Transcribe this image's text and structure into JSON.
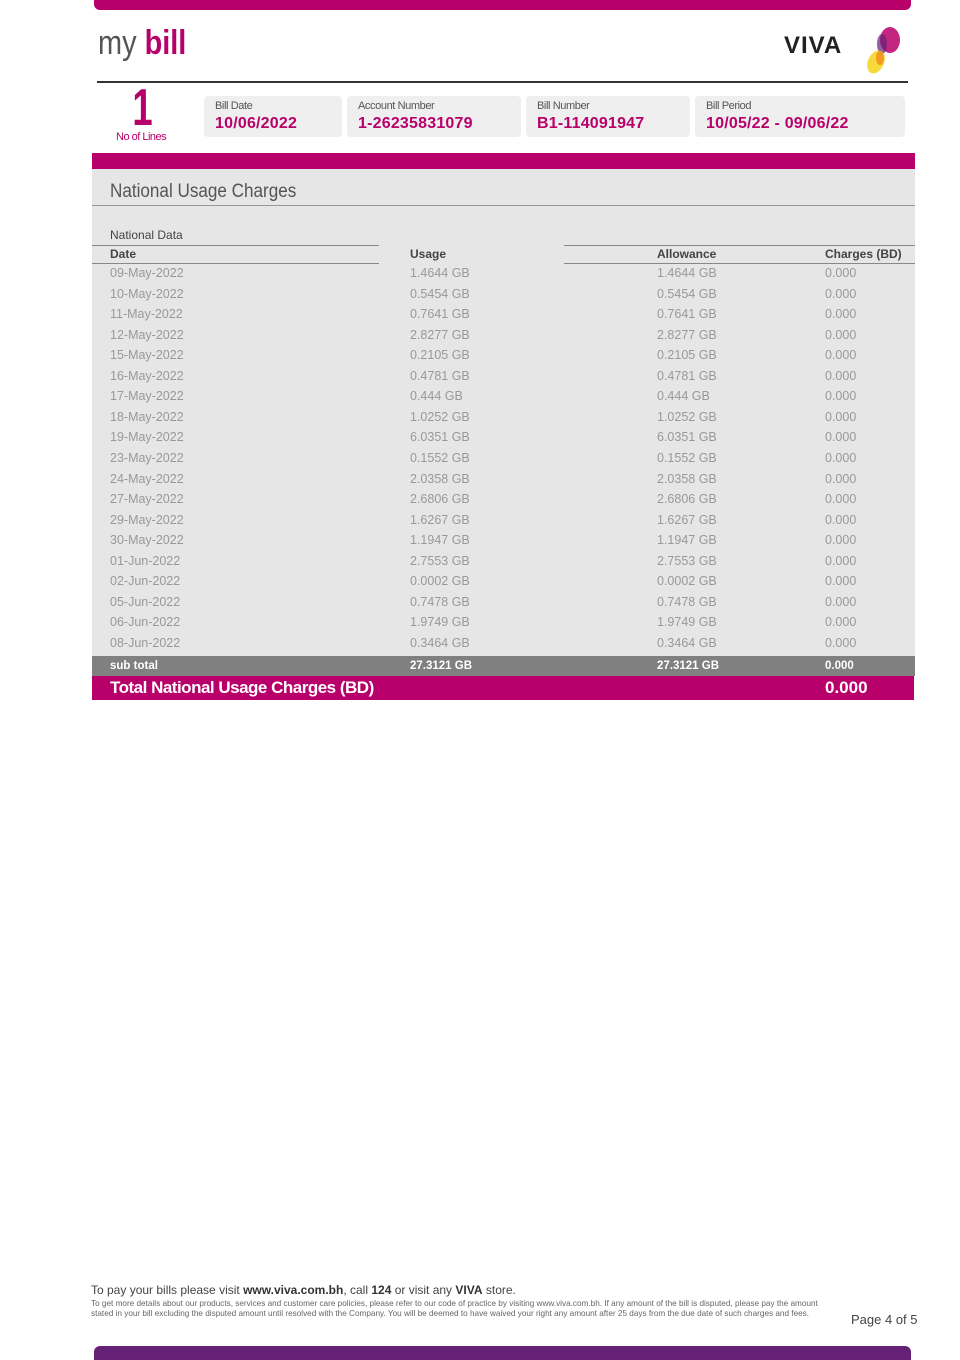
{
  "header": {
    "logo_my": "my",
    "logo_bill": "bill",
    "brand": "VIVA"
  },
  "colors": {
    "brand": "#b8006b",
    "footer_bar": "#652175",
    "subtotal_bg": "#808080",
    "panel_bg": "#e6e6e6"
  },
  "lines": {
    "count": "1",
    "label": "No of Lines"
  },
  "info": [
    {
      "label": "Bill Date",
      "value": "10/06/2022"
    },
    {
      "label": "Account Number",
      "value": "1-26235831079"
    },
    {
      "label": "Bill Number",
      "value": "B1-114091947"
    },
    {
      "label": "Bill Period",
      "value": "10/05/22 - 09/06/22"
    }
  ],
  "section": {
    "title": "National Usage Charges",
    "subtitle": "National Data",
    "columns": [
      "Date",
      "Usage",
      "Allowance",
      "Charges (BD)"
    ],
    "rows": [
      [
        "09-May-2022",
        "1.4644 GB",
        "1.4644 GB",
        "0.000"
      ],
      [
        "10-May-2022",
        "0.5454 GB",
        "0.5454 GB",
        "0.000"
      ],
      [
        "11-May-2022",
        "0.7641 GB",
        "0.7641 GB",
        "0.000"
      ],
      [
        "12-May-2022",
        "2.8277 GB",
        "2.8277 GB",
        "0.000"
      ],
      [
        "15-May-2022",
        "0.2105 GB",
        "0.2105 GB",
        "0.000"
      ],
      [
        "16-May-2022",
        "0.4781 GB",
        "0.4781 GB",
        "0.000"
      ],
      [
        "17-May-2022",
        "0.444 GB",
        "0.444 GB",
        "0.000"
      ],
      [
        "18-May-2022",
        "1.0252 GB",
        "1.0252 GB",
        "0.000"
      ],
      [
        "19-May-2022",
        "6.0351 GB",
        "6.0351 GB",
        "0.000"
      ],
      [
        "23-May-2022",
        "0.1552 GB",
        "0.1552 GB",
        "0.000"
      ],
      [
        "24-May-2022",
        "2.0358 GB",
        "2.0358 GB",
        "0.000"
      ],
      [
        "27-May-2022",
        "2.6806 GB",
        "2.6806 GB",
        "0.000"
      ],
      [
        "29-May-2022",
        "1.6267 GB",
        "1.6267 GB",
        "0.000"
      ],
      [
        "30-May-2022",
        "1.1947 GB",
        "1.1947 GB",
        "0.000"
      ],
      [
        "01-Jun-2022",
        "2.7553 GB",
        "2.7553 GB",
        "0.000"
      ],
      [
        "02-Jun-2022",
        "0.0002 GB",
        "0.0002 GB",
        "0.000"
      ],
      [
        "05-Jun-2022",
        "0.7478 GB",
        "0.7478 GB",
        "0.000"
      ],
      [
        "06-Jun-2022",
        "1.9749 GB",
        "1.9749 GB",
        "0.000"
      ],
      [
        "08-Jun-2022",
        "0.3464 GB",
        "0.3464 GB",
        "0.000"
      ]
    ],
    "subtotal": [
      "sub total",
      "27.3121 GB",
      "27.3121 GB",
      "0.000"
    ],
    "total_label": "Total National Usage Charges (BD)",
    "total_value": "0.000"
  },
  "footer": {
    "pay_1": "To pay your bills please visit ",
    "pay_url": "www.viva.com.bh",
    "pay_2": ", call ",
    "pay_num": "124",
    "pay_3": " or visit any ",
    "pay_brand": "VIVA",
    "pay_4": " store.",
    "fine": "To get more details about our products, services and customer care policies, please refer to our code of practice by visiting www.viva.com.bh. If any amount of the bill is disputed, please pay the amount stated in your bill excluding the disputed amount until resolved with the Company. You will be deemed to have waived your right any amount after 25 days from the due date of such charges and fees.",
    "page": "Page 4 of 5"
  }
}
